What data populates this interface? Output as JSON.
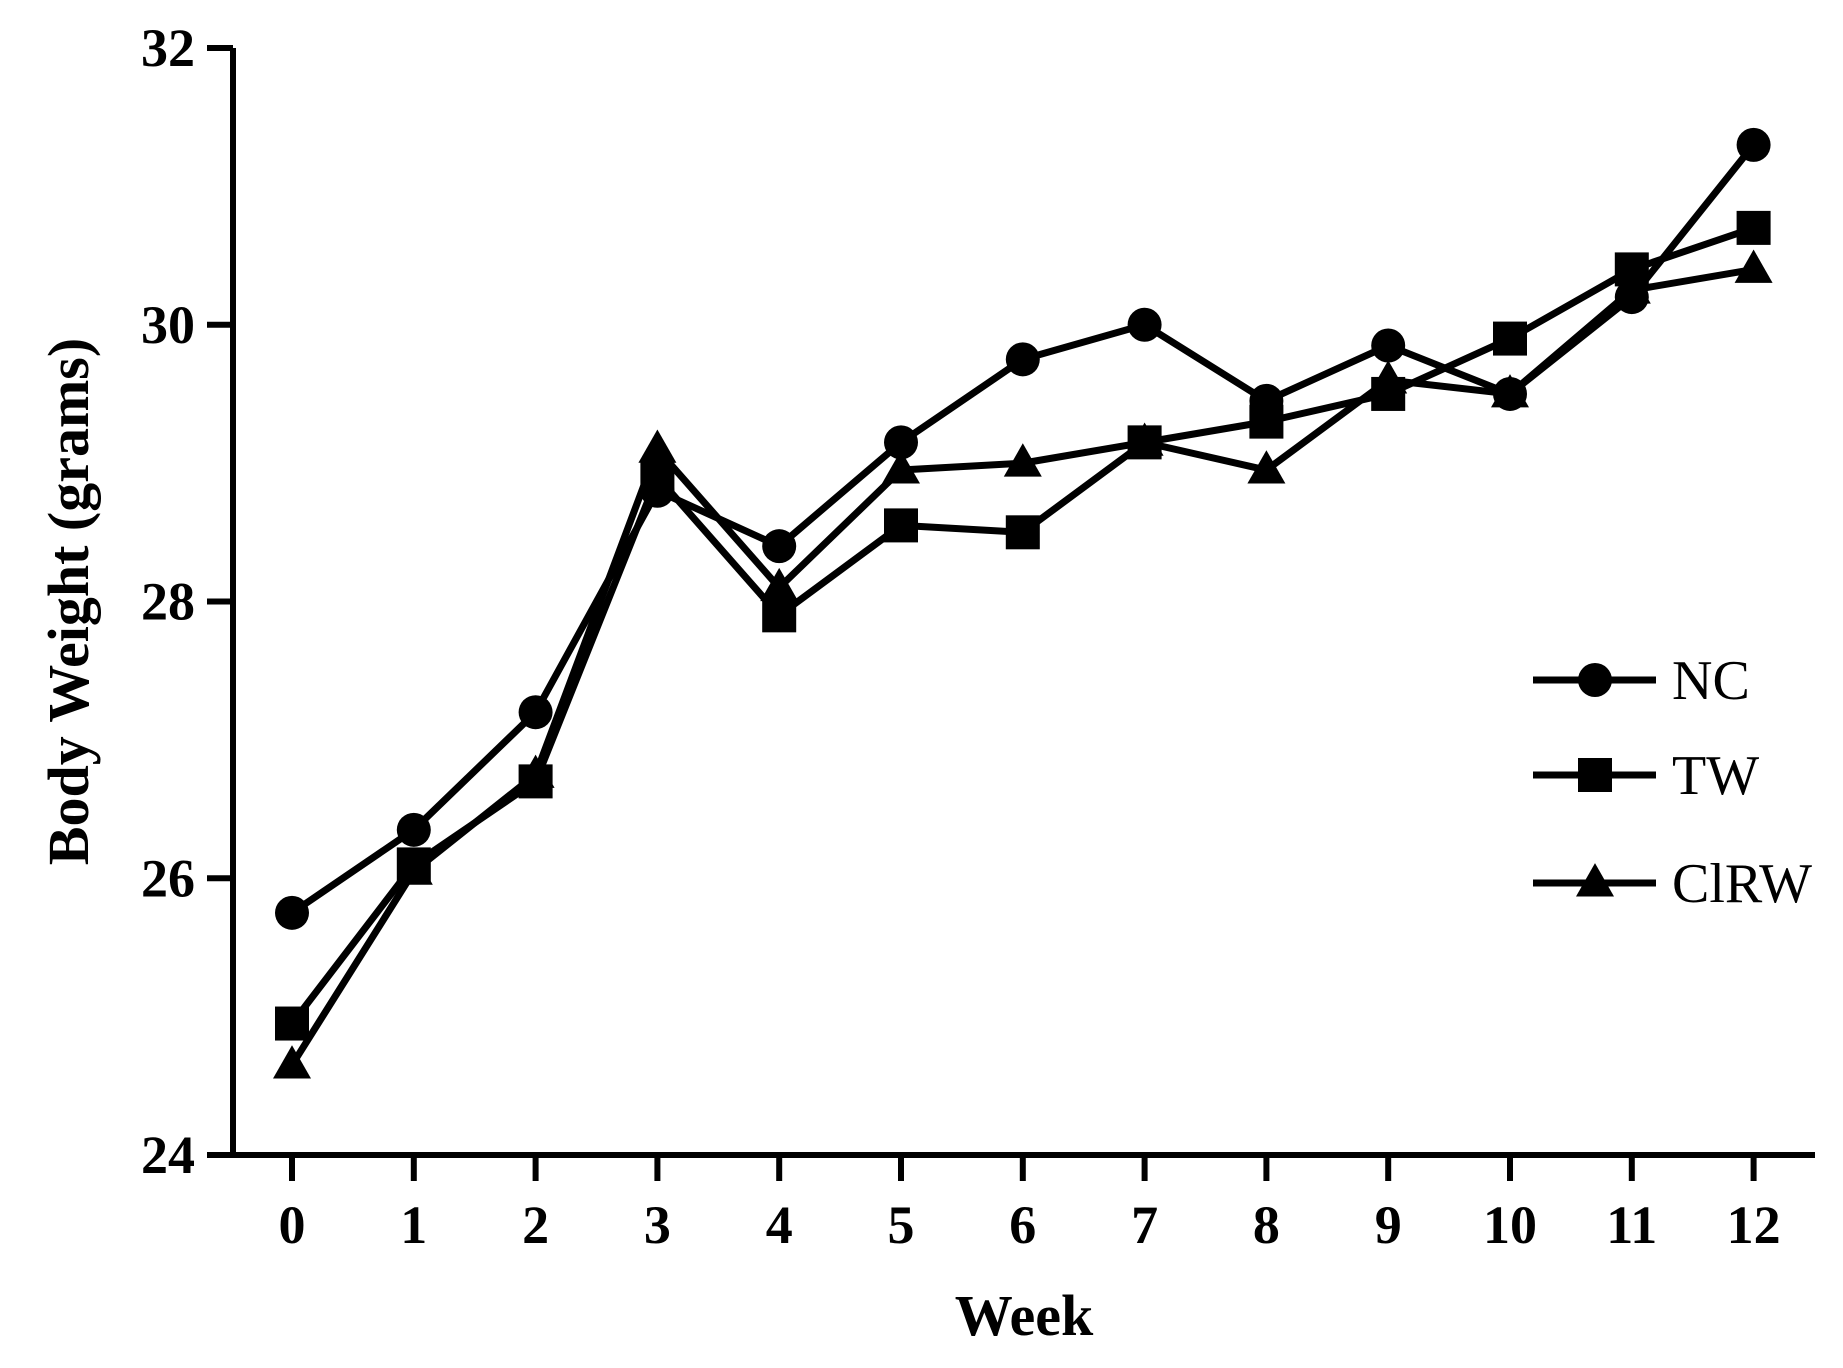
{
  "chart_data": {
    "type": "line",
    "xlabel": "Week",
    "ylabel": "Body Weight (grams)",
    "x": [
      0,
      1,
      2,
      3,
      4,
      5,
      6,
      7,
      8,
      9,
      10,
      11,
      12
    ],
    "x_ticks": [
      "0",
      "1",
      "2",
      "3",
      "4",
      "5",
      "6",
      "7",
      "8",
      "9",
      "10",
      "11",
      "12"
    ],
    "ylim": [
      24,
      32
    ],
    "y_ticks": [
      "24",
      "26",
      "28",
      "30",
      "32"
    ],
    "grid": false,
    "legend_position": "right",
    "series": [
      {
        "name": "NC",
        "marker": "circle",
        "color": "#000000",
        "values": [
          25.75,
          26.35,
          27.2,
          28.8,
          28.4,
          29.15,
          29.75,
          30.0,
          29.45,
          29.85,
          29.5,
          30.2,
          31.3
        ]
      },
      {
        "name": "TW",
        "marker": "square",
        "color": "#000000",
        "values": [
          24.95,
          26.1,
          26.7,
          28.9,
          27.9,
          28.55,
          28.5,
          29.15,
          29.3,
          29.5,
          29.9,
          30.4,
          30.7
        ]
      },
      {
        "name": "ClRW",
        "marker": "triangle",
        "color": "#000000",
        "values": [
          24.65,
          26.05,
          26.75,
          29.1,
          28.1,
          28.95,
          29.0,
          29.15,
          28.95,
          29.6,
          29.5,
          30.25,
          30.4
        ]
      }
    ]
  }
}
